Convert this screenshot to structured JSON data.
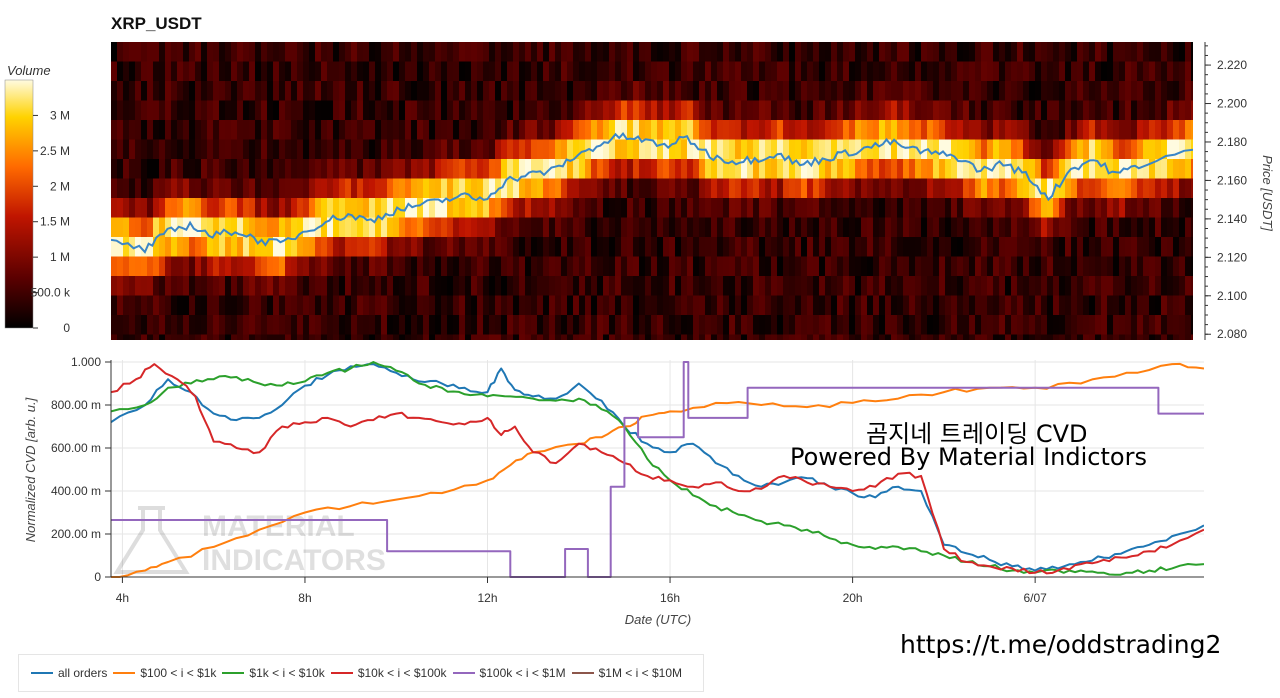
{
  "header": {
    "title": "XRP_USDT"
  },
  "watermark": {
    "line1": "MATERIAL",
    "line2": "INDICATORS"
  },
  "overlay": {
    "title_ko": "곰지네 트레이딩 CVD",
    "powered_by": "Powered By Material Indictors",
    "url": "https://t.me/oddstrading2"
  },
  "colors": {
    "all_orders": "#1f77b4",
    "c100_1k": "#ff7f0e",
    "c1k_10k": "#2ca02c",
    "c10k_100k": "#d62728",
    "c100k_1m": "#9467bd",
    "c1m_10m": "#8c564b"
  },
  "chart_data": [
    {
      "type": "heatmap",
      "title": "XRP_USDT",
      "colorbar": {
        "label": "Volume",
        "ticks": [
          "3 M",
          "2.5 M",
          "2 M",
          "1.5 M",
          "1 M",
          "500.0 k",
          "0"
        ],
        "range": [
          0,
          3500000
        ]
      },
      "ylabel": "Price [USDT]",
      "yticks": [
        "2.220",
        "2.200",
        "2.180",
        "2.160",
        "2.140",
        "2.120",
        "2.100",
        "2.080"
      ],
      "ylim": [
        2.077,
        2.232
      ],
      "x_hours": [
        4,
        28
      ],
      "price_path": {
        "x": [
          3.75,
          4.5,
          5,
          5.5,
          6,
          6.5,
          7,
          7.5,
          8,
          8.5,
          9,
          9.5,
          10,
          10.5,
          11,
          11.5,
          12,
          12.5,
          13,
          13.5,
          14,
          14.5,
          15,
          15.5,
          16,
          16.5,
          17,
          17.5,
          18,
          18.5,
          19,
          19.5,
          20,
          20.5,
          21,
          21.5,
          22,
          22.5,
          23,
          23.5,
          24,
          24.5,
          25,
          25.5,
          26,
          26.5,
          27.7
        ],
        "y": [
          2.128,
          2.124,
          2.133,
          2.137,
          2.131,
          2.134,
          2.129,
          2.127,
          2.133,
          2.139,
          2.142,
          2.139,
          2.144,
          2.147,
          2.149,
          2.152,
          2.15,
          2.16,
          2.163,
          2.165,
          2.172,
          2.178,
          2.183,
          2.181,
          2.178,
          2.182,
          2.173,
          2.17,
          2.171,
          2.174,
          2.168,
          2.171,
          2.174,
          2.177,
          2.18,
          2.176,
          2.174,
          2.172,
          2.165,
          2.169,
          2.163,
          2.151,
          2.166,
          2.171,
          2.163,
          2.168,
          2.176
        ]
      }
    },
    {
      "type": "line",
      "xlabel": "Date (UTC)",
      "ylabel": "Normalized CVD [arb. u.]",
      "ylim": [
        0,
        1
      ],
      "yticks": [
        "0",
        "200.00 m",
        "400.00 m",
        "600.00 m",
        "800.00 m",
        "1.000"
      ],
      "xlim": [
        3.75,
        27.7
      ],
      "xticks": [
        {
          "x": 4,
          "label": "4h"
        },
        {
          "x": 8,
          "label": "8h"
        },
        {
          "x": 12,
          "label": "12h"
        },
        {
          "x": 16,
          "label": "16h"
        },
        {
          "x": 20,
          "label": "20h"
        },
        {
          "x": 24,
          "label": "6/07"
        }
      ],
      "series": [
        {
          "name": "all orders",
          "color": "#1f77b4",
          "x": [
            3.75,
            4.5,
            5,
            5.5,
            6,
            6.5,
            7,
            7.5,
            8,
            8.5,
            9,
            9.5,
            10,
            10.5,
            11,
            11.5,
            12,
            12.3,
            12.6,
            13,
            13.5,
            14,
            14.5,
            15,
            15.5,
            16,
            16.5,
            17,
            17.5,
            18,
            18.5,
            19,
            19.5,
            20,
            20.5,
            21,
            21.5,
            22,
            22.5,
            23,
            23.5,
            24,
            24.5,
            25,
            25.5,
            26,
            26.5,
            27,
            27.7
          ],
          "y": [
            0.72,
            0.8,
            0.92,
            0.86,
            0.76,
            0.73,
            0.74,
            0.8,
            0.89,
            0.94,
            0.98,
            0.99,
            0.95,
            0.91,
            0.9,
            0.88,
            0.86,
            0.97,
            0.87,
            0.84,
            0.83,
            0.9,
            0.82,
            0.7,
            0.62,
            0.58,
            0.62,
            0.53,
            0.47,
            0.42,
            0.44,
            0.46,
            0.42,
            0.39,
            0.37,
            0.42,
            0.4,
            0.15,
            0.11,
            0.08,
            0.05,
            0.03,
            0.04,
            0.07,
            0.09,
            0.12,
            0.15,
            0.19,
            0.24
          ]
        },
        {
          "name": "$100 < i < $1k",
          "color": "#ff7f0e",
          "x": [
            3.75,
            4.5,
            5,
            6,
            7,
            8,
            9,
            10,
            11,
            12,
            12.5,
            13,
            14,
            14.5,
            15,
            15.5,
            16,
            17,
            18,
            19,
            20,
            21,
            22,
            23,
            24,
            25,
            26,
            27,
            27.7
          ],
          "y": [
            0,
            0.03,
            0.07,
            0.14,
            0.22,
            0.3,
            0.33,
            0.36,
            0.39,
            0.45,
            0.52,
            0.58,
            0.62,
            0.65,
            0.7,
            0.75,
            0.77,
            0.81,
            0.8,
            0.79,
            0.81,
            0.83,
            0.86,
            0.88,
            0.88,
            0.9,
            0.95,
            0.99,
            0.97
          ]
        },
        {
          "name": "$1k < i < $10k",
          "color": "#2ca02c",
          "x": [
            3.75,
            4.5,
            5,
            5.5,
            6,
            6.5,
            7,
            7.5,
            8,
            8.5,
            9,
            9.5,
            10,
            10.5,
            11,
            11.5,
            12,
            12.5,
            13,
            13.5,
            14,
            14.5,
            15,
            15.5,
            16,
            16.5,
            17,
            17.5,
            18,
            18.5,
            19,
            19.5,
            20,
            20.5,
            21,
            21.5,
            22,
            22.5,
            23,
            23.5,
            24,
            24.5,
            25,
            25.5,
            26,
            26.5,
            27,
            27.7
          ],
          "y": [
            0.77,
            0.8,
            0.88,
            0.9,
            0.92,
            0.93,
            0.9,
            0.89,
            0.91,
            0.95,
            0.97,
            1.0,
            0.96,
            0.9,
            0.88,
            0.85,
            0.84,
            0.84,
            0.83,
            0.82,
            0.83,
            0.78,
            0.7,
            0.55,
            0.45,
            0.38,
            0.33,
            0.29,
            0.26,
            0.24,
            0.22,
            0.18,
            0.15,
            0.13,
            0.14,
            0.12,
            0.1,
            0.07,
            0.05,
            0.03,
            0.02,
            0.03,
            0.03,
            0.02,
            0.02,
            0.03,
            0.04,
            0.06
          ]
        },
        {
          "name": "$10k < i < $100k",
          "color": "#d62728",
          "x": [
            3.75,
            4.3,
            4.7,
            5.2,
            5.6,
            6,
            6.5,
            7,
            7.5,
            8,
            8.5,
            9,
            9.5,
            10,
            10.5,
            11,
            11.5,
            12,
            12.3,
            12.6,
            13,
            13.5,
            14,
            14.5,
            15,
            15.5,
            16,
            16.5,
            17,
            17.5,
            18,
            18.5,
            19,
            19.5,
            20,
            20.5,
            21,
            21.5,
            22,
            22.5,
            23,
            23.5,
            24,
            24.5,
            25,
            25.5,
            26,
            26.5,
            27,
            27.7
          ],
          "y": [
            0.86,
            0.92,
            0.99,
            0.92,
            0.84,
            0.63,
            0.6,
            0.58,
            0.7,
            0.72,
            0.74,
            0.7,
            0.73,
            0.76,
            0.74,
            0.72,
            0.71,
            0.74,
            0.66,
            0.7,
            0.58,
            0.53,
            0.62,
            0.58,
            0.53,
            0.47,
            0.45,
            0.42,
            0.44,
            0.4,
            0.41,
            0.47,
            0.44,
            0.42,
            0.4,
            0.42,
            0.48,
            0.47,
            0.13,
            0.07,
            0.05,
            0.04,
            0.02,
            0.03,
            0.06,
            0.08,
            0.09,
            0.12,
            0.15,
            0.22
          ]
        },
        {
          "name": "$100k < i < $1M",
          "color": "#9467bd",
          "x": [
            3.75,
            9.8,
            9.8,
            12.5,
            12.5,
            13.7,
            13.7,
            14.2,
            14.2,
            14.7,
            14.7,
            15.0,
            15.0,
            15.3,
            15.3,
            16.3,
            16.3,
            16.4,
            16.4,
            17.7,
            17.7,
            26.7,
            26.7,
            27.7
          ],
          "y": [
            0.265,
            0.265,
            0.12,
            0.12,
            0.0,
            0.0,
            0.13,
            0.13,
            0.0,
            0.0,
            0.42,
            0.42,
            0.74,
            0.74,
            0.65,
            0.65,
            1.0,
            1.0,
            0.74,
            0.74,
            0.88,
            0.88,
            0.76,
            0.76
          ]
        },
        {
          "name": "$1M < i < $10M",
          "color": "#8c564b",
          "x": [],
          "y": []
        }
      ]
    }
  ]
}
